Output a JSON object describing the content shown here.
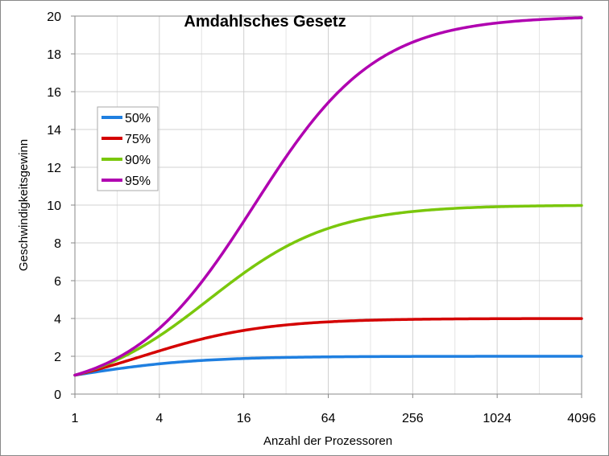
{
  "chart_data": {
    "type": "line",
    "title": "Amdahlsches Gesetz",
    "xlabel": "Anzahl der Prozessoren",
    "ylabel": "Geschwindigkeitsgewinn",
    "x_scale": "log2",
    "xlim": [
      1,
      4096
    ],
    "ylim": [
      0,
      20
    ],
    "x_ticks": [
      1,
      4,
      16,
      64,
      256,
      1024,
      4096
    ],
    "x_tick_labels": [
      "1",
      "4",
      "16",
      "64",
      "256",
      "1024",
      "4096"
    ],
    "y_ticks": [
      0,
      2,
      4,
      6,
      8,
      10,
      12,
      14,
      16,
      18,
      20
    ],
    "y_tick_labels": [
      "0",
      "2",
      "4",
      "6",
      "8",
      "10",
      "12",
      "14",
      "16",
      "18",
      "20"
    ],
    "grid": true,
    "legend_position": "upper-left",
    "x": [
      1,
      2,
      4,
      8,
      16,
      32,
      64,
      128,
      256,
      512,
      1024,
      2048,
      4096
    ],
    "series": [
      {
        "name": "50%",
        "color": "#1f7fe0",
        "parallel_fraction": 0.5,
        "values": [
          1.0,
          1.33,
          1.6,
          1.78,
          1.88,
          1.94,
          1.97,
          1.98,
          1.99,
          2.0,
          2.0,
          2.0,
          2.0
        ]
      },
      {
        "name": "75%",
        "color": "#d40000",
        "parallel_fraction": 0.75,
        "values": [
          1.0,
          1.6,
          2.29,
          2.91,
          3.37,
          3.66,
          3.82,
          3.91,
          3.95,
          3.98,
          3.99,
          3.99,
          4.0
        ]
      },
      {
        "name": "90%",
        "color": "#7ac70c",
        "parallel_fraction": 0.9,
        "values": [
          1.0,
          1.82,
          3.08,
          4.71,
          6.4,
          7.8,
          8.77,
          9.34,
          9.66,
          9.83,
          9.91,
          9.96,
          9.98
        ]
      },
      {
        "name": "95%",
        "color": "#b000b0",
        "parallel_fraction": 0.95,
        "values": [
          1.0,
          1.9,
          3.48,
          5.93,
          9.14,
          12.55,
          15.42,
          17.41,
          18.62,
          19.28,
          19.63,
          19.82,
          19.91
        ]
      }
    ]
  }
}
